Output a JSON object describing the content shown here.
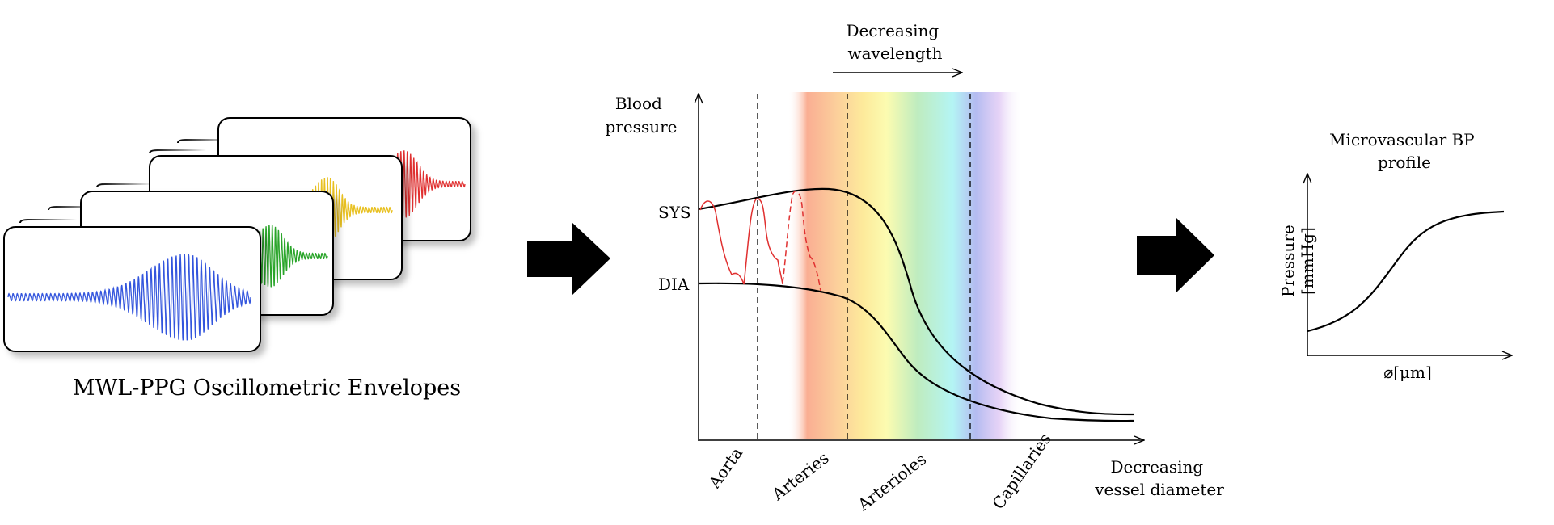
{
  "left_panel": {
    "caption": "MWL-PPG Oscillometric Envelopes",
    "envelope_colors": [
      "#3355dd",
      "#2aa52a",
      "#e8c020",
      "#e03030"
    ]
  },
  "middle_panel": {
    "y_axis_label": [
      "Blood",
      "pressure"
    ],
    "x_axis_label": [
      "Decreasing",
      "vessel diameter"
    ],
    "wavelength_label": [
      "Decreasing",
      "wavelength"
    ],
    "sys_label": "SYS",
    "dia_label": "DIA",
    "vessel_labels": [
      "Aorta",
      "Arteries",
      "Arterioles",
      "Capillaries"
    ],
    "spectrum_colors": [
      "#f9a080",
      "#fde890",
      "#fbfba8",
      "#b8eab8",
      "#b0f4f4",
      "#b0b8f0",
      "#e0c8f4"
    ],
    "pulse_color": "#e03030"
  },
  "right_panel": {
    "title": [
      "Microvascular BP",
      "profile"
    ],
    "y_label": [
      "Pressure",
      "[mmHg]"
    ],
    "x_label": "⌀[μm]"
  }
}
